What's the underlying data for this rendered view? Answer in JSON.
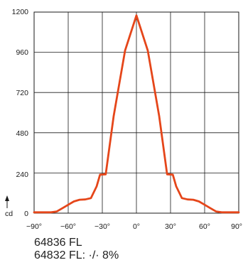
{
  "chart_data": {
    "type": "line",
    "title": "",
    "xlabel": "",
    "ylabel": "cd",
    "x_ticks": [
      "−90°",
      "−60°",
      "−30°",
      "0°",
      "30°",
      "60°",
      "90°"
    ],
    "y_ticks": [
      "0",
      "240",
      "480",
      "720",
      "960",
      "1200"
    ],
    "xlim": [
      -90,
      90
    ],
    "ylim": [
      0,
      1200
    ],
    "grid": true,
    "colors": {
      "curve": "#e5461a",
      "grid": "#1a1a1a"
    },
    "series": [
      {
        "x": [
          -90,
          -75,
          -70,
          -65,
          -60,
          -55,
          -50,
          -45,
          -40,
          -35,
          -32,
          -27,
          -20,
          -10,
          0,
          10,
          20,
          27,
          32,
          35,
          40,
          45,
          50,
          55,
          60,
          65,
          70,
          75,
          90
        ],
        "y": [
          5,
          5,
          10,
          30,
          50,
          70,
          80,
          82,
          90,
          160,
          230,
          232,
          580,
          970,
          1180,
          970,
          580,
          232,
          230,
          160,
          90,
          82,
          80,
          70,
          50,
          30,
          10,
          5,
          5
        ]
      }
    ]
  },
  "captions": {
    "line1": "64836 FL",
    "line2": "64832 FL: ·/· 8%"
  }
}
